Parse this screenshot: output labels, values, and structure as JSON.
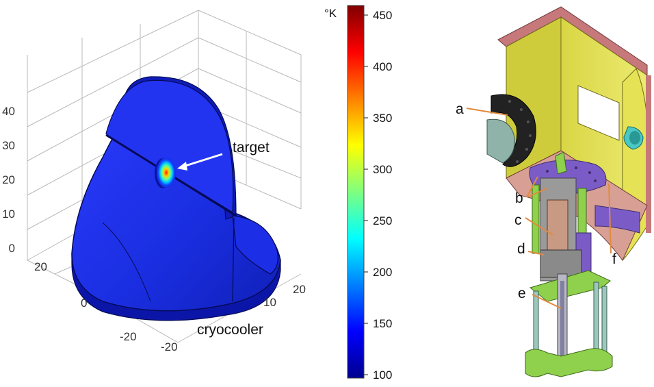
{
  "left_panel": {
    "z_ticks": [
      "0",
      "10",
      "20",
      "30",
      "40"
    ],
    "x_ticks": [
      "20",
      "0",
      "-20"
    ],
    "y_ticks": [
      "-20",
      "10",
      "20"
    ],
    "target_label": "target",
    "cryocooler_label": "cryocooler",
    "colors": {
      "body_blue": "#1a2ee0",
      "body_dark": "#0b16a8",
      "edge": "#050a55"
    }
  },
  "colorbar": {
    "unit": "°K",
    "ticks": [
      "450",
      "400",
      "350",
      "300",
      "250",
      "200",
      "150",
      "100"
    ],
    "min": 100,
    "max": 450,
    "colormap": "jet"
  },
  "right_panel": {
    "labels": [
      "a",
      "b",
      "c",
      "d",
      "e",
      "f"
    ],
    "colors": {
      "chamber_yellow": "#e6e255",
      "flange_red": "#c7787a",
      "plate_purple": "#7b5cc7",
      "support_green": "#8fd04c",
      "leader_orange": "#e08a40",
      "window_teal": "#49c8c4"
    }
  }
}
